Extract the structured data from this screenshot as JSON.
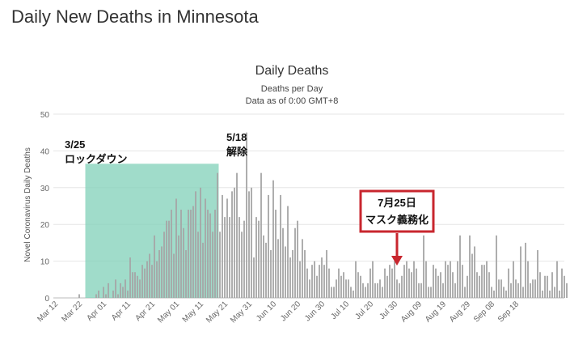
{
  "page_title": "Daily New Deaths in Minnesota",
  "chart_data": {
    "type": "bar",
    "title": "Daily Deaths",
    "subtitle_line1": "Deaths per Day",
    "subtitle_line2": "Data as of 0:00 GMT+8",
    "ylabel": "Novel Coronavirus Daily Deaths",
    "xlabel": "",
    "ylim": [
      0,
      50
    ],
    "yticks": [
      0,
      10,
      20,
      30,
      40,
      50
    ],
    "bar_color": "#a6a6a6",
    "start_date": "Mar 12",
    "x_tick_labels": [
      "Mar 12",
      "Mar 22",
      "Apr 01",
      "Apr 11",
      "Apr 21",
      "May 01",
      "May 11",
      "May 21",
      "May 31",
      "Jun 10",
      "Jun 20",
      "Jun 30",
      "Jul 10",
      "Jul 20",
      "Jul 30",
      "Aug 09",
      "Aug 19",
      "Aug 29",
      "Sep 08",
      "Sep 18"
    ],
    "values": [
      0,
      0,
      0,
      0,
      0,
      0,
      0,
      0,
      0,
      0,
      1,
      0,
      0,
      0,
      0,
      0,
      0,
      1,
      2,
      0,
      3,
      1,
      4,
      0,
      2,
      5,
      1,
      4,
      3,
      5,
      2,
      11,
      7,
      7,
      6,
      5,
      9,
      8,
      10,
      12,
      9,
      17,
      10,
      13,
      14,
      18,
      21,
      21,
      24,
      12,
      27,
      17,
      24,
      19,
      13,
      24,
      24,
      25,
      29,
      18,
      30,
      15,
      27,
      24,
      23,
      18,
      24,
      34,
      18,
      28,
      22,
      27,
      22,
      29,
      30,
      34,
      22,
      18,
      21,
      45,
      29,
      30,
      11,
      22,
      21,
      34,
      17,
      15,
      28,
      13,
      32,
      24,
      16,
      28,
      19,
      14,
      25,
      11,
      13,
      19,
      21,
      10,
      16,
      13,
      8,
      5,
      9,
      10,
      6,
      9,
      11,
      9,
      13,
      8,
      3,
      3,
      5,
      8,
      6,
      7,
      5,
      5,
      3,
      2,
      10,
      7,
      6,
      4,
      3,
      4,
      8,
      10,
      4,
      4,
      5,
      3,
      8,
      6,
      9,
      8,
      10,
      5,
      4,
      6,
      9,
      10,
      8,
      7,
      10,
      8,
      4,
      4,
      17,
      10,
      3,
      3,
      9,
      8,
      6,
      7,
      4,
      10,
      9,
      10,
      7,
      4,
      10,
      17,
      9,
      3,
      6,
      17,
      12,
      14,
      7,
      6,
      9,
      9,
      10,
      7,
      3,
      2,
      17,
      5,
      5,
      3,
      2,
      8,
      4,
      10,
      5,
      4,
      14,
      3,
      15,
      10,
      4,
      5,
      5,
      13,
      7,
      2,
      6,
      6,
      2,
      7,
      3,
      10,
      2,
      8,
      6,
      4
    ],
    "annotations": {
      "lockdown": {
        "date": "3/25",
        "label": "ロックダウン",
        "shade_color": "#80d0b8",
        "start": "Mar 25",
        "end": "May 18"
      },
      "lift": {
        "date": "5/18",
        "label": "解除"
      },
      "mask": {
        "date": "7月25日",
        "label": "マスク義務化",
        "color": "#c8262e"
      }
    }
  }
}
